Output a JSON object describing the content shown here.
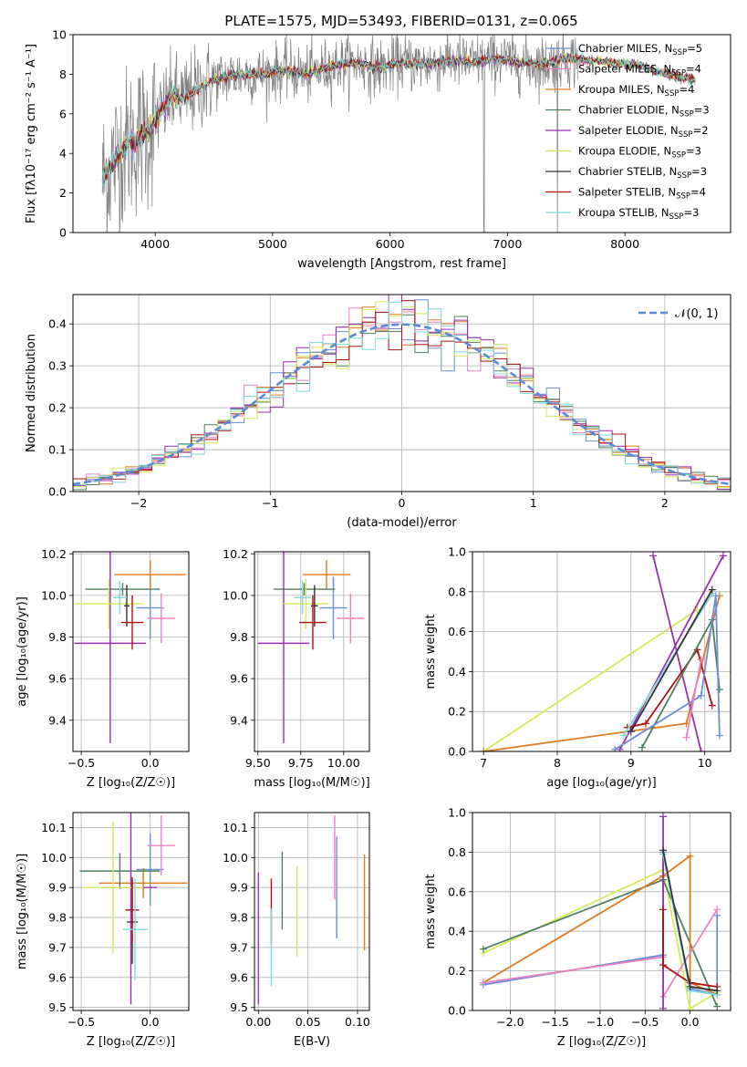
{
  "colors": {
    "Chabrier MILES": "#6a8ed6",
    "Salpeter MILES": "#ee82c0",
    "Kroupa MILES": "#e07a20",
    "Chabrier ELODIE": "#4f7f5f",
    "Salpeter ELODIE": "#9a2fb0",
    "Kroupa ELODIE": "#d4ea5a",
    "Chabrier STELIB": "#333333",
    "Salpeter STELIB": "#b01010",
    "Kroupa STELIB": "#7fd8d8",
    "data": "#808080",
    "normal": "#5b8bd6"
  },
  "figure_title": "PLATE=1575, MJD=53493, FIBERID=0131, z=0.065",
  "chart_data": [
    {
      "id": "spectrum",
      "type": "line",
      "title": "PLATE=1575, MJD=53493, FIBERID=0131, z=0.065",
      "xlabel": "wavelength [Angstrom, rest frame]",
      "ylabel": "Flux [fλ10⁻¹⁷ erg cm⁻² s⁻¹ A⁻¹]",
      "xlim": [
        3300,
        8900
      ],
      "ylim": [
        0,
        10
      ],
      "xticks": [
        4000,
        5000,
        6000,
        7000,
        8000
      ],
      "yticks": [
        0,
        2,
        4,
        6,
        8,
        10
      ],
      "grid": false,
      "legend_position": "right",
      "continuum": {
        "x": [
          3550,
          3650,
          3750,
          3850,
          3950,
          4050,
          4150,
          4250,
          4350,
          4500,
          4700,
          4900,
          5100,
          5300,
          5500,
          5700,
          5900,
          6100,
          6300,
          6500,
          6700,
          6900,
          7100,
          7300,
          7500,
          7700,
          7900,
          8100,
          8300,
          8500,
          8700
        ],
        "y": [
          2.6,
          3.7,
          4.4,
          4.8,
          5.2,
          6.1,
          6.9,
          6.8,
          7.2,
          7.7,
          8.0,
          8.0,
          8.2,
          8.0,
          8.4,
          8.6,
          8.3,
          8.6,
          8.5,
          8.7,
          8.6,
          8.8,
          8.6,
          8.5,
          8.8,
          8.7,
          8.6,
          8.5,
          8.1,
          7.8,
          7.6
        ]
      },
      "data_noise_sigma": 0.9,
      "data_dropouts_x": [
        6800,
        7425
      ],
      "data_xrange": [
        3550,
        7600
      ],
      "model_xrange": [
        3550,
        8600
      ],
      "series": [
        {
          "name": "Chabrier MILES, N",
          "sub": "SSP",
          "suffix": "=5",
          "color_key": "Chabrier MILES"
        },
        {
          "name": "Salpeter MILES, N",
          "sub": "SSP",
          "suffix": "=4",
          "color_key": "Salpeter MILES"
        },
        {
          "name": "Kroupa MILES, N",
          "sub": "SSP",
          "suffix": "=4",
          "color_key": "Kroupa MILES"
        },
        {
          "name": "Chabrier ELODIE, N",
          "sub": "SSP",
          "suffix": "=3",
          "color_key": "Chabrier ELODIE"
        },
        {
          "name": "Salpeter ELODIE, N",
          "sub": "SSP",
          "suffix": "=2",
          "color_key": "Salpeter ELODIE"
        },
        {
          "name": "Kroupa ELODIE, N",
          "sub": "SSP",
          "suffix": "=3",
          "color_key": "Kroupa ELODIE"
        },
        {
          "name": "Chabrier STELIB, N",
          "sub": "SSP",
          "suffix": "=3",
          "color_key": "Chabrier STELIB"
        },
        {
          "name": "Salpeter STELIB, N",
          "sub": "SSP",
          "suffix": "=4",
          "color_key": "Salpeter STELIB"
        },
        {
          "name": "Kroupa STELIB, N",
          "sub": "SSP",
          "suffix": "=3",
          "color_key": "Kroupa STELIB"
        }
      ]
    },
    {
      "id": "residuals",
      "type": "line",
      "xlabel": "(data-model)/error",
      "ylabel": "Normed distribution",
      "xlim": [
        -2.5,
        2.5
      ],
      "ylim": [
        0,
        0.47
      ],
      "xticks": [
        -2,
        -1,
        0,
        1,
        2
      ],
      "yticks": [
        0.0,
        0.1,
        0.2,
        0.3,
        0.4
      ],
      "grid": true,
      "legend_position": "top-right",
      "legend": "𝒩(0, 1)",
      "bin_width": 0.1,
      "series_colors": [
        "Chabrier MILES",
        "Salpeter MILES",
        "Kroupa MILES",
        "Chabrier ELODIE",
        "Salpeter ELODIE",
        "Kroupa ELODIE",
        "Salpeter STELIB",
        "Kroupa STELIB"
      ]
    },
    {
      "id": "Z-age",
      "type": "scatter",
      "xlabel": "Z [log₁₀(Z/Z☉)]",
      "ylabel": "age  [log₁₀(age/yr)]",
      "xlim": [
        -0.56,
        0.28
      ],
      "ylim": [
        9.25,
        10.21
      ],
      "xticks": [
        -0.5,
        0.0
      ],
      "xticklabels": [
        "−0.5",
        "0.0"
      ],
      "yticks": [
        9.4,
        9.6,
        9.8,
        10.0,
        10.2
      ],
      "grid": true,
      "points": [
        {
          "key": "Chabrier MILES",
          "x": 0.0,
          "y": 9.94,
          "xerr": 0.1,
          "yerr": 0.15
        },
        {
          "key": "Salpeter MILES",
          "x": 0.08,
          "y": 9.89,
          "xerr": 0.1,
          "yerr": 0.12
        },
        {
          "key": "Kroupa MILES",
          "x": 0.0,
          "y": 10.1,
          "xerr": 0.26,
          "yerr": 0.07
        },
        {
          "key": "Chabrier ELODIE",
          "x": -0.2,
          "y": 10.03,
          "xerr": 0.27,
          "yerr": 0.03
        },
        {
          "key": "Salpeter ELODIE",
          "x": -0.29,
          "y": 9.77,
          "xerr": 0.26,
          "yerr": 0.48
        },
        {
          "key": "Kroupa ELODIE",
          "x": -0.3,
          "y": 9.96,
          "xerr": 0.25,
          "yerr": 0.12
        },
        {
          "key": "Chabrier STELIB",
          "x": -0.17,
          "y": 9.95,
          "xerr": 0.02,
          "yerr": 0.1
        },
        {
          "key": "Salpeter STELIB",
          "x": -0.13,
          "y": 9.87,
          "xerr": 0.08,
          "yerr": 0.13
        },
        {
          "key": "Kroupa STELIB",
          "x": -0.22,
          "y": 9.99,
          "xerr": 0.05,
          "yerr": 0.08
        }
      ]
    },
    {
      "id": "mass-age",
      "type": "scatter",
      "xlabel": "mass [log₁₀(M/M☉)]",
      "ylabel": "",
      "xlim": [
        9.48,
        10.15
      ],
      "ylim": [
        9.25,
        10.21
      ],
      "xticks": [
        9.5,
        9.75,
        10.0
      ],
      "xticklabels": [
        "9.50",
        "9.75",
        "10.00"
      ],
      "yticks": [
        9.4,
        9.6,
        9.8,
        10.0,
        10.2
      ],
      "grid": true,
      "points": [
        {
          "key": "Chabrier MILES",
          "x": 9.94,
          "y": 9.94,
          "xerr": 0.08,
          "yerr": 0.15
        },
        {
          "key": "Salpeter MILES",
          "x": 10.04,
          "y": 9.89,
          "xerr": 0.08,
          "yerr": 0.12
        },
        {
          "key": "Kroupa MILES",
          "x": 9.9,
          "y": 10.1,
          "xerr": 0.14,
          "yerr": 0.07
        },
        {
          "key": "Chabrier ELODIE",
          "x": 9.77,
          "y": 10.03,
          "xerr": 0.18,
          "yerr": 0.03
        },
        {
          "key": "Salpeter ELODIE",
          "x": 9.65,
          "y": 9.77,
          "xerr": 0.15,
          "yerr": 0.48
        },
        {
          "key": "Kroupa ELODIE",
          "x": 9.78,
          "y": 9.96,
          "xerr": 0.13,
          "yerr": 0.12
        },
        {
          "key": "Chabrier STELIB",
          "x": 9.83,
          "y": 9.95,
          "xerr": 0.02,
          "yerr": 0.1
        },
        {
          "key": "Salpeter STELIB",
          "x": 9.82,
          "y": 9.87,
          "xerr": 0.08,
          "yerr": 0.13
        },
        {
          "key": "Kroupa STELIB",
          "x": 9.76,
          "y": 9.99,
          "xerr": 0.05,
          "yerr": 0.08
        }
      ]
    },
    {
      "id": "age-weight",
      "type": "line",
      "xlabel": "age  [log₁₀(age/yr)]",
      "ylabel": "mass weight",
      "xlim": [
        6.85,
        10.35
      ],
      "ylim": [
        0,
        1
      ],
      "xticks": [
        7,
        8,
        9,
        10
      ],
      "yticks": [
        0.0,
        0.2,
        0.4,
        0.6,
        0.8,
        1.0
      ],
      "grid": true,
      "series": [
        {
          "key": "Kroupa ELODIE",
          "x": [
            7.0,
            9.9
          ],
          "y": [
            0.0,
            0.71
          ]
        },
        {
          "key": "Kroupa MILES",
          "x": [
            7.0,
            9.75,
            10.2
          ],
          "y": [
            0.0,
            0.14,
            0.78
          ]
        },
        {
          "key": "Salpeter ELODIE",
          "x": [
            8.85,
            10.25
          ],
          "y": [
            0.01,
            0.98
          ]
        },
        {
          "key": "Salpeter ELODIE",
          "x": [
            9.3,
            9.95
          ],
          "y": [
            0.98,
            0.0
          ]
        },
        {
          "key": "Salpeter STELIB",
          "x": [
            8.95,
            9.2,
            9.9,
            10.1
          ],
          "y": [
            0.12,
            0.14,
            0.51,
            0.23
          ]
        },
        {
          "key": "Chabrier ELODIE",
          "x": [
            9.15,
            10.1,
            10.2
          ],
          "y": [
            0.02,
            0.66,
            0.31
          ]
        },
        {
          "key": "Chabrier MILES",
          "x": [
            8.78,
            9.95,
            10.15,
            10.2
          ],
          "y": [
            0.01,
            0.28,
            0.78,
            0.08
          ]
        },
        {
          "key": "Kroupa STELIB",
          "x": [
            8.9,
            10.1
          ],
          "y": [
            0.08,
            0.79
          ]
        },
        {
          "key": "Chabrier STELIB",
          "x": [
            9.0,
            10.1
          ],
          "y": [
            0.1,
            0.81
          ]
        },
        {
          "key": "Salpeter MILES",
          "x": [
            9.75,
            9.95
          ],
          "y": [
            0.07,
            0.46
          ]
        }
      ]
    },
    {
      "id": "Z-mass",
      "type": "scatter",
      "xlabel": "Z [log₁₀(Z/Z☉)]",
      "ylabel": "mass [log₁₀(M/M☉)]",
      "xlim": [
        -0.56,
        0.28
      ],
      "ylim": [
        9.49,
        10.15
      ],
      "xticks": [
        -0.5,
        0.0
      ],
      "xticklabels": [
        "−0.5",
        "0.0"
      ],
      "yticks": [
        9.5,
        9.6,
        9.7,
        9.8,
        9.9,
        10.0,
        10.1
      ],
      "grid": true,
      "points": [
        {
          "key": "Chabrier MILES",
          "x": 0.0,
          "y": 9.96,
          "xerr": 0.1,
          "yerr": 0.12
        },
        {
          "key": "Salpeter MILES",
          "x": 0.08,
          "y": 10.04,
          "xerr": 0.1,
          "yerr": 0.1
        },
        {
          "key": "Kroupa MILES",
          "x": -0.05,
          "y": 9.915,
          "xerr": 0.32,
          "yerr": 0.05
        },
        {
          "key": "Chabrier ELODIE",
          "x": -0.22,
          "y": 9.955,
          "xerr": 0.29,
          "yerr": 0.06
        },
        {
          "key": "Salpeter ELODIE",
          "x": -0.14,
          "y": 9.9,
          "xerr": 0.19,
          "yerr": 0.39
        },
        {
          "key": "Kroupa ELODIE",
          "x": -0.27,
          "y": 9.9,
          "xerr": 0.22,
          "yerr": 0.22
        },
        {
          "key": "Chabrier STELIB",
          "x": -0.13,
          "y": 9.785,
          "xerr": 0.04,
          "yerr": 0.14
        },
        {
          "key": "Salpeter STELIB",
          "x": -0.13,
          "y": 9.825,
          "xerr": 0.05,
          "yerr": 0.11
        },
        {
          "key": "Kroupa STELIB",
          "x": -0.11,
          "y": 9.76,
          "xerr": 0.09,
          "yerr": 0.17
        }
      ]
    },
    {
      "id": "ebv-mass",
      "type": "scatter",
      "xlabel": "E(B-V)",
      "ylabel": "",
      "xlim": [
        -0.004,
        0.112
      ],
      "ylim": [
        9.49,
        10.15
      ],
      "xticks": [
        0.0,
        0.05,
        0.1
      ],
      "xticklabels": [
        "0.00",
        "0.05",
        "0.10"
      ],
      "yticks": [
        9.5,
        9.6,
        9.7,
        9.8,
        9.9,
        10.0,
        10.1
      ],
      "grid": true,
      "points": [
        {
          "key": "Salpeter ELODIE",
          "x": 0.0,
          "y": 9.73,
          "yerr": 0.22
        },
        {
          "key": "Salpeter STELIB",
          "x": 0.013,
          "y": 9.82,
          "yerr": 0.11
        },
        {
          "key": "Kroupa STELIB",
          "x": 0.013,
          "y": 9.7,
          "yerr": 0.13
        },
        {
          "key": "Chabrier ELODIE",
          "x": 0.024,
          "y": 9.89,
          "yerr": 0.13
        },
        {
          "key": "Kroupa ELODIE",
          "x": 0.039,
          "y": 9.82,
          "yerr": 0.15
        },
        {
          "key": "Salpeter MILES",
          "x": 0.077,
          "y": 10.0,
          "yerr": 0.14
        },
        {
          "key": "Chabrier MILES",
          "x": 0.079,
          "y": 9.9,
          "yerr": 0.17
        },
        {
          "key": "Kroupa MILES",
          "x": 0.107,
          "y": 9.85,
          "yerr": 0.16
        }
      ]
    },
    {
      "id": "Z-weight",
      "type": "line",
      "xlabel": "Z [log₁₀(Z/Z☉)]",
      "ylabel": "mass weight",
      "xlim": [
        -2.42,
        0.45
      ],
      "ylim": [
        0,
        1
      ],
      "xticks": [
        -2.0,
        -1.5,
        -1.0,
        -0.5,
        0.0
      ],
      "xticklabels": [
        "−2.0",
        "−1.5",
        "−1.0",
        "−0.5",
        "0.0"
      ],
      "yticks": [
        0.0,
        0.2,
        0.4,
        0.6,
        0.8,
        1.0
      ],
      "grid": true,
      "series": [
        {
          "key": "Kroupa ELODIE",
          "x": [
            -2.3,
            -0.3,
            0.0,
            0.3
          ],
          "y": [
            0.29,
            0.71,
            0.01,
            0.09
          ]
        },
        {
          "key": "Chabrier ELODIE",
          "x": [
            -2.3,
            -0.3,
            0.3
          ],
          "y": [
            0.31,
            0.66,
            0.02
          ]
        },
        {
          "key": "Kroupa MILES",
          "x": [
            -2.3,
            -0.3,
            0.0,
            0.0,
            0.3
          ],
          "y": [
            0.14,
            0.68,
            0.78,
            0.14,
            0.08
          ]
        },
        {
          "key": "Chabrier MILES",
          "x": [
            -2.3,
            -0.3,
            -0.3,
            0.0,
            0.3,
            0.3
          ],
          "y": [
            0.13,
            0.28,
            0.8,
            0.11,
            0.08,
            0.48
          ]
        },
        {
          "key": "Salpeter MILES",
          "x": [
            -2.3,
            -0.3,
            -0.3,
            0.3
          ],
          "y": [
            0.14,
            0.27,
            0.07,
            0.51
          ]
        },
        {
          "key": "Salpeter ELODIE",
          "x": [
            -0.3,
            -0.3
          ],
          "y": [
            0.01,
            0.98
          ]
        },
        {
          "key": "Salpeter STELIB",
          "x": [
            -0.3,
            -0.3,
            0.0,
            0.3
          ],
          "y": [
            0.51,
            0.23,
            0.14,
            0.12
          ]
        },
        {
          "key": "Kroupa STELIB",
          "x": [
            -0.3,
            0.0,
            0.3
          ],
          "y": [
            0.79,
            0.1,
            0.08
          ]
        },
        {
          "key": "Chabrier STELIB",
          "x": [
            -0.3,
            0.0,
            0.3
          ],
          "y": [
            0.81,
            0.12,
            0.1
          ]
        }
      ]
    }
  ]
}
